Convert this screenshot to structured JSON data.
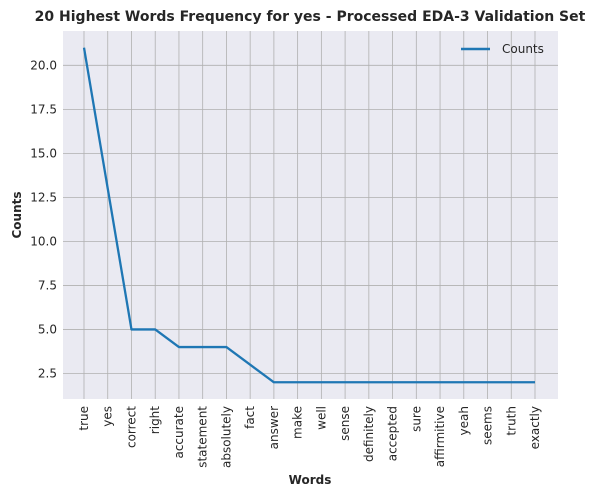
{
  "chart_data": {
    "type": "line",
    "title": "20 Highest Words Frequency for yes - Processed EDA-3 Validation Set",
    "xlabel": "Words",
    "ylabel": "Counts",
    "categories": [
      "true",
      "yes",
      "correct",
      "right",
      "accurate",
      "statement",
      "absolutely",
      "fact",
      "answer",
      "make",
      "well",
      "sense",
      "definitely",
      "accepted",
      "sure",
      "affirmitive",
      "yeah",
      "seems",
      "truth",
      "exactly"
    ],
    "series": [
      {
        "name": "Counts",
        "values": [
          21,
          13,
          5,
          5,
          4,
          4,
          4,
          3,
          2,
          2,
          2,
          2,
          2,
          2,
          2,
          2,
          2,
          2,
          2,
          2
        ]
      }
    ],
    "yticks": [
      "2.5",
      "5.0",
      "7.5",
      "10.0",
      "12.5",
      "15.0",
      "17.5",
      "20.0"
    ],
    "ylim": [
      1.05,
      21.95
    ],
    "grid": true,
    "legend_position": "top-right",
    "colors": {
      "line": "#1f77b4",
      "background": "#eaeaf2",
      "grid": "#b0b0b0"
    }
  }
}
